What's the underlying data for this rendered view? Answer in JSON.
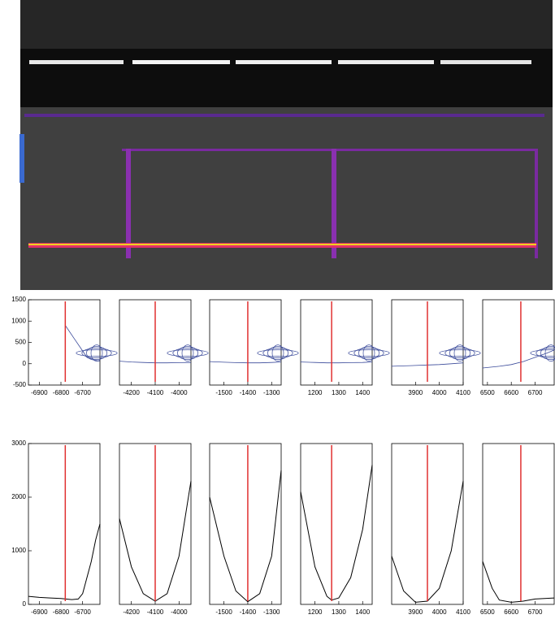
{
  "chart_data": [
    {
      "type": "contour",
      "xlim": [
        -6950,
        -6620
      ],
      "xticks": [
        -6900,
        -6800,
        -6700
      ],
      "ylim": [
        -500,
        1500
      ],
      "yticks": [
        -500,
        0,
        500,
        1000,
        1500
      ],
      "vline": -6780,
      "vline_color": "#e03030",
      "color": "#3a4a9a",
      "x": [
        -6780,
        -6740,
        -6700,
        -6680,
        -6660,
        -6640,
        -6620
      ],
      "values": [
        900,
        600,
        300,
        150,
        100,
        80,
        60
      ]
    },
    {
      "type": "contour",
      "xlim": [
        -4250,
        -3950
      ],
      "xticks": [
        -4200,
        -4100,
        -4000
      ],
      "ylim": [
        -500,
        1500
      ],
      "vline": -4100,
      "vline_color": "#e03030",
      "color": "#3a4a9a",
      "x": [
        -4250,
        -4200,
        -4150,
        -4100,
        -4050,
        -4000,
        -3950
      ],
      "values": [
        60,
        40,
        30,
        20,
        20,
        25,
        30
      ]
    },
    {
      "type": "contour",
      "xlim": [
        -1560,
        -1260
      ],
      "xticks": [
        -1500,
        -1400,
        -1300
      ],
      "ylim": [
        -500,
        1500
      ],
      "vline": -1400,
      "vline_color": "#e03030",
      "color": "#3a4a9a",
      "x": [
        -1560,
        -1500,
        -1450,
        -1400,
        -1350,
        -1300,
        -1260
      ],
      "values": [
        50,
        35,
        25,
        20,
        20,
        30,
        40
      ]
    },
    {
      "type": "contour",
      "xlim": [
        1140,
        1440
      ],
      "xticks": [
        1200,
        1300,
        1400
      ],
      "ylim": [
        -500,
        1500
      ],
      "vline": 1270,
      "vline_color": "#e03030",
      "color": "#3a4a9a",
      "x": [
        1140,
        1200,
        1250,
        1300,
        1350,
        1400,
        1440
      ],
      "values": [
        40,
        30,
        20,
        20,
        25,
        30,
        40
      ]
    },
    {
      "type": "contour",
      "xlim": [
        3800,
        4100
      ],
      "xticks": [
        3900,
        4000,
        4100
      ],
      "ylim": [
        -500,
        1500
      ],
      "vline": 3950,
      "vline_color": "#e03030",
      "color": "#3a4a9a",
      "x": [
        3800,
        3850,
        3900,
        3950,
        4000,
        4050,
        4100
      ],
      "values": [
        -60,
        -50,
        -40,
        -30,
        -20,
        0,
        20
      ]
    },
    {
      "type": "contour",
      "xlim": [
        6480,
        6780
      ],
      "xticks": [
        6500,
        6600,
        6700
      ],
      "ylim": [
        -500,
        1500
      ],
      "vline": 6640,
      "vline_color": "#e03030",
      "color": "#3a4a9a",
      "x": [
        6480,
        6550,
        6600,
        6650,
        6700,
        6750,
        6780
      ],
      "values": [
        -100,
        -60,
        -20,
        50,
        150,
        250,
        320
      ]
    },
    {
      "type": "histogram",
      "xlim": [
        -6950,
        -6620
      ],
      "xticks": [
        -6900,
        -6800,
        -6700
      ],
      "ylim": [
        0,
        3000
      ],
      "yticks": [
        0,
        1000,
        2000,
        3000
      ],
      "vline": -6780,
      "vline_color": "#e03030",
      "color": "#000000",
      "x": [
        -6950,
        -6900,
        -6850,
        -6800,
        -6750,
        -6720,
        -6700,
        -6680,
        -6660,
        -6640,
        -6620
      ],
      "values": [
        150,
        130,
        120,
        110,
        90,
        100,
        200,
        500,
        800,
        1200,
        1500
      ]
    },
    {
      "type": "histogram",
      "xlim": [
        -4250,
        -3950
      ],
      "xticks": [
        -4200,
        -4100,
        -4000
      ],
      "ylim": [
        0,
        3000
      ],
      "vline": -4100,
      "vline_color": "#e03030",
      "color": "#000000",
      "x": [
        -4250,
        -4200,
        -4150,
        -4100,
        -4050,
        -4000,
        -3950
      ],
      "values": [
        1600,
        700,
        200,
        60,
        200,
        900,
        2300
      ]
    },
    {
      "type": "histogram",
      "xlim": [
        -1560,
        -1260
      ],
      "xticks": [
        -1500,
        -1400,
        -1300
      ],
      "ylim": [
        0,
        3000
      ],
      "vline": -1400,
      "vline_color": "#e03030",
      "color": "#000000",
      "x": [
        -1560,
        -1500,
        -1450,
        -1400,
        -1350,
        -1300,
        -1260
      ],
      "values": [
        2000,
        900,
        250,
        50,
        200,
        900,
        2500
      ]
    },
    {
      "type": "histogram",
      "xlim": [
        1140,
        1440
      ],
      "xticks": [
        1200,
        1300,
        1400
      ],
      "ylim": [
        0,
        3000
      ],
      "vline": 1270,
      "vline_color": "#e03030",
      "color": "#000000",
      "x": [
        1140,
        1200,
        1250,
        1270,
        1300,
        1350,
        1400,
        1440
      ],
      "values": [
        2100,
        700,
        150,
        80,
        120,
        500,
        1400,
        2600
      ]
    },
    {
      "type": "histogram",
      "xlim": [
        3800,
        4100
      ],
      "xticks": [
        3900,
        4000,
        4100
      ],
      "ylim": [
        0,
        3000
      ],
      "vline": 3950,
      "vline_color": "#e03030",
      "color": "#000000",
      "x": [
        3800,
        3850,
        3900,
        3950,
        4000,
        4050,
        4100
      ],
      "values": [
        900,
        250,
        40,
        60,
        300,
        1000,
        2300
      ]
    },
    {
      "type": "histogram",
      "xlim": [
        6480,
        6780
      ],
      "xticks": [
        6500,
        6600,
        6700
      ],
      "ylim": [
        0,
        3000
      ],
      "vline": 6640,
      "vline_color": "#e03030",
      "color": "#000000",
      "x": [
        6480,
        6520,
        6550,
        6600,
        6650,
        6700,
        6780
      ],
      "values": [
        800,
        300,
        80,
        40,
        60,
        100,
        120
      ]
    }
  ]
}
